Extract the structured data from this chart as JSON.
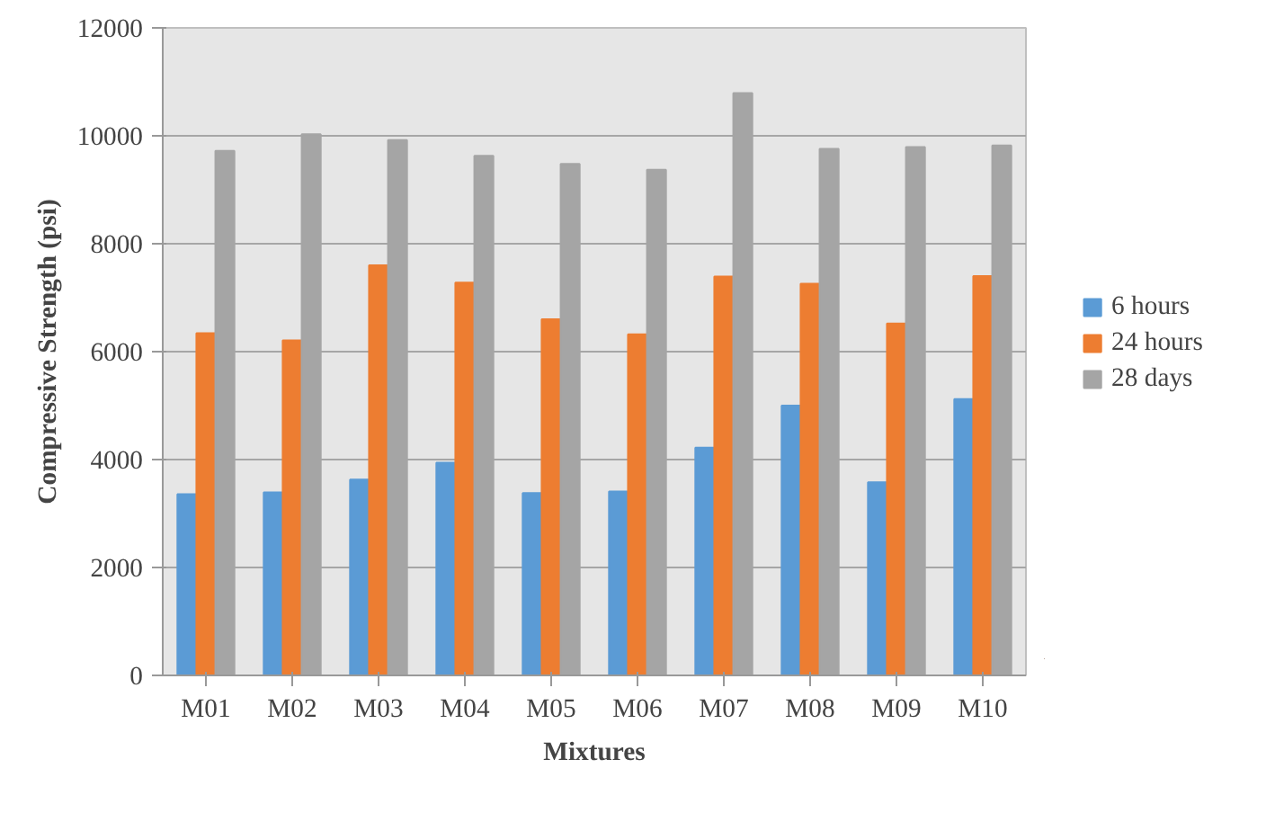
{
  "chart_data": {
    "type": "bar",
    "xlabel": "Mixtures",
    "ylabel": "Compressive Strength (psi)",
    "categories": [
      "M01",
      "M02",
      "M03",
      "M04",
      "M05",
      "M06",
      "M07",
      "M08",
      "M09",
      "M10"
    ],
    "series": [
      {
        "name": "6 hours",
        "color": "#5b9bd5",
        "values": [
          3360,
          3390,
          3630,
          3940,
          3380,
          3410,
          4220,
          5000,
          3580,
          5120
        ]
      },
      {
        "name": "24 hours",
        "color": "#ed7d31",
        "values": [
          6340,
          6210,
          7600,
          7280,
          6600,
          6320,
          7390,
          7260,
          6520,
          7400
        ]
      },
      {
        "name": "28 days",
        "color": "#a5a5a5",
        "values": [
          9720,
          10030,
          9920,
          9630,
          9480,
          9370,
          10790,
          9760,
          9790,
          9820
        ]
      }
    ],
    "ylim": [
      0,
      12000
    ],
    "yticks": [
      0,
      2000,
      4000,
      6000,
      8000,
      10000,
      12000
    ],
    "grid": "y",
    "legend": "right"
  }
}
